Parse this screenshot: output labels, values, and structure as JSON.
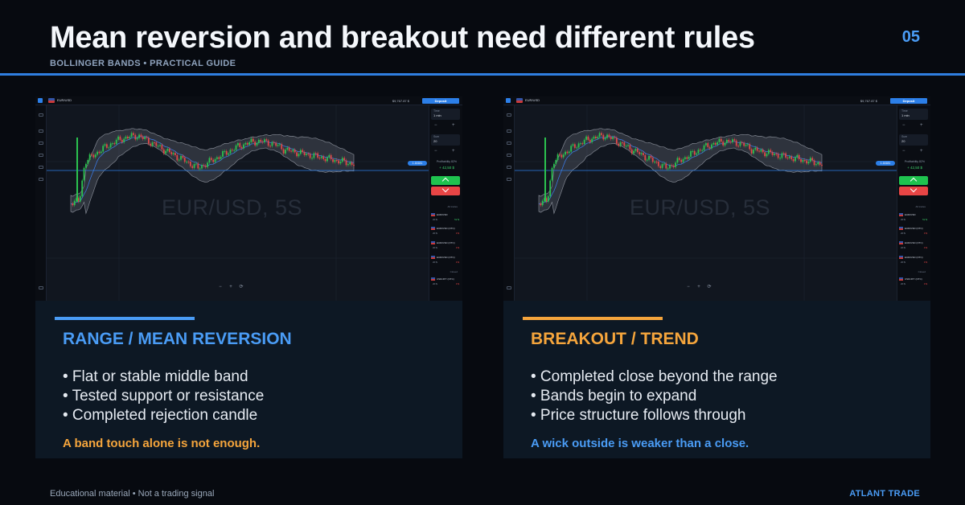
{
  "header": {
    "title": "Mean reversion and breakout need different rules",
    "subtitle": "BOLLINGER BANDS • PRACTICAL GUIDE",
    "page_number": "05"
  },
  "colors": {
    "accent_blue": "#4a9cf5",
    "accent_orange": "#f5a53c",
    "rule_blue": "#2f7ee0",
    "card_bg": "#0d1824",
    "buy_green": "#1fc34f",
    "sell_red": "#e84545"
  },
  "screenshot": {
    "watermark": "EUR/USD, 5S",
    "pair": "EUR/USD",
    "deposit_label": "Deposit",
    "account_label": "$9,767.87 $",
    "price_tag": "1.16181",
    "time_label": "Time",
    "time_value": "1 min",
    "amount_label": "Sum",
    "amount_value": "20",
    "payout_label": "Profitability 82%",
    "payout_value": "+ 42,50 $",
    "trades_label": "All trades",
    "closed_label": "Closed",
    "trades": [
      {
        "name": "EUR/USD",
        "amount": "20 $",
        "pl": "52 $",
        "win": true
      },
      {
        "name": "EUR/USD (OTC)",
        "amount": "20 $",
        "pl": "0 $",
        "win": false
      },
      {
        "name": "EUR/USD (OTC)",
        "amount": "20 $",
        "pl": "0 $",
        "win": false
      },
      {
        "name": "EUR/USD (OTC)",
        "amount": "20 $",
        "pl": "0 $",
        "win": false
      },
      {
        "name": "USD/JPY (OTC)",
        "amount": "20 $",
        "pl": "0 $",
        "win": false
      }
    ],
    "icons": [
      "logo-icon",
      "menu-icon",
      "chart-type-icon",
      "indicators-icon",
      "drawing-icon",
      "timeframe-icon",
      "settings-icon"
    ],
    "zoom_controls": [
      "−",
      "+",
      "⟳"
    ]
  },
  "panels": [
    {
      "title": "RANGE / MEAN REVERSION",
      "accent": "#4a9cf5",
      "bullets": [
        "• Flat or stable middle band",
        "• Tested support or resistance",
        "• Completed rejection candle"
      ],
      "note": "A band touch alone is not enough.",
      "note_color": "#f5a53c"
    },
    {
      "title": "BREAKOUT / TREND",
      "accent": "#f5a53c",
      "bullets": [
        "• Completed close beyond the range",
        "• Bands begin to expand",
        "• Price structure follows through"
      ],
      "note": "A wick outside is weaker than a close.",
      "note_color": "#4a9cf5"
    }
  ],
  "footer": {
    "left": "Educational material • Not a trading signal",
    "right": "ATLANT TRADE"
  }
}
